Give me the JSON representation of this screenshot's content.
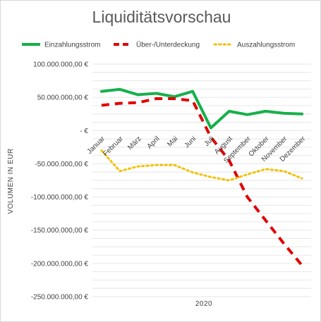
{
  "chart_data": {
    "type": "line",
    "title": "Liquiditätsvorschau",
    "xlabel": "2020",
    "ylabel": "VOLUMEN IN EUR",
    "categories": [
      "Januar",
      "Februar",
      "März",
      "April",
      "Mai",
      "Juni",
      "Juli",
      "August",
      "September",
      "Oktober",
      "November",
      "Dezember"
    ],
    "ylim": [
      -250000000,
      100000000
    ],
    "yticks": [
      100000000,
      50000000,
      0,
      -50000000,
      -100000000,
      -150000000,
      -200000000,
      -250000000
    ],
    "ytick_labels": [
      "100.000.000,00 €",
      "50.000.000,00 €",
      "-   €",
      "-50.000.000,00 €",
      "-100.000.000,00 €",
      "-150.000.000,00 €",
      "-200.000.000,00 €",
      "-250.000.000,00 €"
    ],
    "grid": true,
    "legend_position": "top",
    "series": [
      {
        "name": "Einzahlungsstrom",
        "color": "#16b04a",
        "style": "solid",
        "values": [
          59000000,
          62000000,
          54000000,
          56000000,
          51000000,
          59000000,
          4000000,
          29000000,
          24000000,
          29000000,
          26000000,
          25000000
        ]
      },
      {
        "name": "Über-/Unterdeckung",
        "color": "#e00000",
        "style": "dashed",
        "values": [
          38000000,
          41000000,
          42000000,
          48000000,
          48000000,
          45000000,
          -10000000,
          -45000000,
          -100000000,
          -135000000,
          -170000000,
          -203000000
        ]
      },
      {
        "name": "Auszahlungsstrom",
        "color": "#f2c20a",
        "style": "dotted",
        "values": [
          -30000000,
          -61000000,
          -54000000,
          -52000000,
          -52000000,
          -63000000,
          -70000000,
          -75000000,
          -66000000,
          -58000000,
          -61000000,
          -72000000
        ]
      }
    ]
  }
}
